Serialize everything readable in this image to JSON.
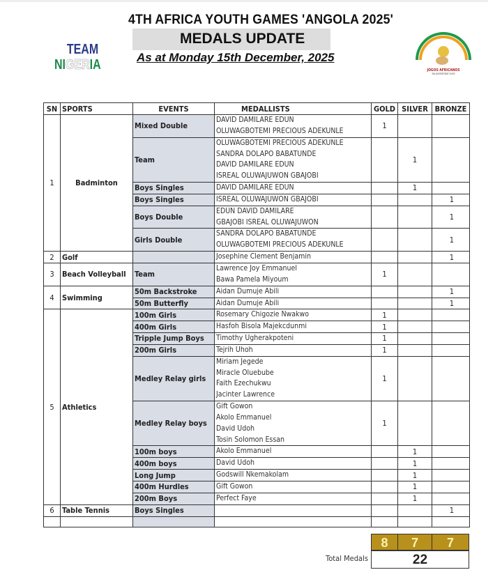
{
  "header": {
    "title": "4TH AFRICA YOUTH GAMES 'ANGOLA 2025'",
    "subtitle": "MEDALS UPDATE",
    "date": "As at Monday 15th December, 2025",
    "team_logo_text": "TEAM NIGERIA",
    "games_logo_text": "JOGOS AFRICANOS DA JUVENTUDE 2025"
  },
  "columns": [
    "SN",
    "SPORTS",
    "EVENTS",
    "MEDALLISTS",
    "GOLD",
    "SILVER",
    "BRONZE"
  ],
  "colors": {
    "events_bg": "#d8dde6",
    "totals_bg": "#b8901c",
    "totals_text": "#fdf3b0"
  },
  "sports": [
    {
      "sn": "1",
      "name": "Badminton",
      "centered": true,
      "events": [
        {
          "event": "Mixed Double",
          "medallists": [
            "DAVID DAMILARE EDUN",
            "OLUWAGBOTEMI PRECIOUS ADEKUNLE"
          ],
          "gold": "1",
          "silver": "",
          "bronze": ""
        },
        {
          "event": "Team",
          "medallists": [
            "OLUWAGBOTEMI PRECIOUS ADEKUNLE",
            "SANDRA DOLAPO BABATUNDE",
            "DAVID DAMILARE EDUN",
            "ISREAL OLUWAJUWON GBAJOBI"
          ],
          "gold": "",
          "silver": "1",
          "bronze": ""
        },
        {
          "event": "Boys Singles",
          "medallists": [
            "DAVID DAMILARE EDUN"
          ],
          "gold": "",
          "silver": "1",
          "bronze": ""
        },
        {
          "event": "Boys Singles",
          "medallists": [
            "ISREAL OLUWAJUWON GBAJOBI"
          ],
          "gold": "",
          "silver": "",
          "bronze": "1"
        },
        {
          "event": "Boys Double",
          "medallists": [
            "EDUN DAVID DAMILARE",
            "GBAJOBI ISREAL OLUWAJUWON"
          ],
          "gold": "",
          "silver": "",
          "bronze": "1"
        },
        {
          "event": "Girls Double",
          "medallists": [
            "SANDRA DOLAPO BABATUNDE",
            "OLUWAGBOTEMI PRECIOUS ADEKUNLE"
          ],
          "gold": "",
          "silver": "",
          "bronze": "1"
        }
      ]
    },
    {
      "sn": "2",
      "name": "Golf",
      "events": [
        {
          "event": "",
          "medallists": [
            "Josephine Clement Benjamin"
          ],
          "gold": "",
          "silver": "",
          "bronze": "1"
        }
      ]
    },
    {
      "sn": "3",
      "name": "Beach Volleyball",
      "events": [
        {
          "event": "Team",
          "medallists": [
            "Lawrence Joy Emmanuel",
            "Bawa Pamela  Miyoum"
          ],
          "gold": "1",
          "silver": "",
          "bronze": ""
        }
      ]
    },
    {
      "sn": "4",
      "name": "Swimming",
      "events": [
        {
          "event": "50m Backstroke",
          "medallists": [
            "Aidan Dumuje Abili"
          ],
          "gold": "",
          "silver": "",
          "bronze": "1"
        },
        {
          "event": "50m Butterfly",
          "medallists": [
            "Aidan Dumuje Abili"
          ],
          "gold": "",
          "silver": "",
          "bronze": "1"
        }
      ]
    },
    {
      "sn": "5",
      "name": "Athletics",
      "events": [
        {
          "event": "100m Girls",
          "medallists": [
            "Rosemary Chigozie Nwakwo"
          ],
          "gold": "1",
          "silver": "",
          "bronze": ""
        },
        {
          "event": "400m Girls",
          "medallists": [
            "Hasfoh Bisola Majekcdunmi"
          ],
          "gold": "1",
          "silver": "",
          "bronze": ""
        },
        {
          "event": "Tripple Jump Boys",
          "medallists": [
            "Timothy Ugherakpoteni"
          ],
          "gold": "1",
          "silver": "",
          "bronze": ""
        },
        {
          "event": "200m Girls",
          "medallists": [
            "Tejrih Uhoh"
          ],
          "gold": "1",
          "silver": "",
          "bronze": ""
        },
        {
          "event": "Medley Relay girls",
          "medallists": [
            "Miriam Jegede",
            "Miracle Oluebube",
            "Faith Ezechukwu",
            "Jacinter Lawrence"
          ],
          "gold": "1",
          "silver": "",
          "bronze": ""
        },
        {
          "event": "Medley Relay boys",
          "medallists": [
            "Gift Gowon",
            "Akolo Emmanuel",
            "David Udoh",
            "Tosin Solomon Essan"
          ],
          "gold": "1",
          "silver": "",
          "bronze": ""
        },
        {
          "event": "100m boys",
          "medallists": [
            "Akolo Emmanuel"
          ],
          "gold": "",
          "silver": "1",
          "bronze": ""
        },
        {
          "event": "400m boys",
          "medallists": [
            "David Udoh"
          ],
          "gold": "",
          "silver": "1",
          "bronze": ""
        },
        {
          "event": "Long Jump",
          "medallists": [
            "Godswill Nkemakolam"
          ],
          "gold": "",
          "silver": "1",
          "bronze": ""
        },
        {
          "event": "400m Hurdles",
          "medallists": [
            "Gift Gowon"
          ],
          "gold": "",
          "silver": "1",
          "bronze": ""
        },
        {
          "event": "200m Boys",
          "medallists": [
            "Perfect Faye"
          ],
          "gold": "",
          "silver": "1",
          "bronze": ""
        }
      ]
    },
    {
      "sn": "6",
      "name": "Table Tennis",
      "events": [
        {
          "event": "Boys Singles",
          "medallists": [
            ""
          ],
          "gold": "",
          "silver": "",
          "bronze": "1"
        }
      ]
    }
  ],
  "totals": {
    "gold": "8",
    "silver": "7",
    "bronze": "7",
    "label": "Total Medals",
    "total": "22"
  }
}
